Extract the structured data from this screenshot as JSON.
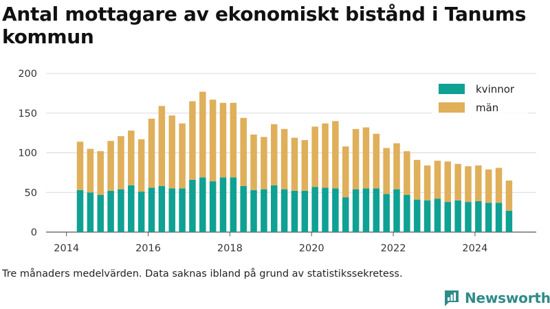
{
  "title": "Antal mottagare av ekonomiskt bistånd i Tanums kommun",
  "caption": "Tre månaders medelvärden. Data saknas ibland på grund av statistikssekretess.",
  "brand": "Newsworthy",
  "colors": {
    "kvinnor": "#0fa193",
    "man": "#dfaf5a",
    "brand": "#2e8b88"
  },
  "chart_data": {
    "type": "bar",
    "stacked": true,
    "title": "Antal mottagare av ekonomiskt bistånd i Tanums kommun",
    "xlabel": "",
    "ylabel": "",
    "ylim": [
      0,
      200
    ],
    "xlim": [
      2013.5,
      2025.5
    ],
    "yticks": [
      0,
      50,
      100,
      150,
      200
    ],
    "xticks": [
      "2014",
      "2016",
      "2018",
      "2020",
      "2022",
      "2024"
    ],
    "grid": true,
    "legend": "top-right",
    "x": [
      "2014-05",
      "2014-08",
      "2014-11",
      "2015-02",
      "2015-05",
      "2015-08",
      "2015-11",
      "2016-02",
      "2016-05",
      "2016-08",
      "2016-11",
      "2017-02",
      "2017-05",
      "2017-08",
      "2017-11",
      "2018-02",
      "2018-05",
      "2018-08",
      "2018-11",
      "2019-02",
      "2019-05",
      "2019-08",
      "2019-11",
      "2020-02",
      "2020-05",
      "2020-08",
      "2020-11",
      "2021-02",
      "2021-05",
      "2021-08",
      "2021-11",
      "2022-02",
      "2022-05",
      "2022-08",
      "2022-11",
      "2023-02",
      "2023-05",
      "2023-08",
      "2023-11",
      "2024-02",
      "2024-05",
      "2024-08",
      "2024-11"
    ],
    "series": [
      {
        "name": "kvinnor",
        "values": [
          53,
          50,
          47,
          52,
          54,
          59,
          51,
          56,
          58,
          55,
          55,
          66,
          69,
          64,
          69,
          69,
          58,
          53,
          54,
          59,
          54,
          52,
          52,
          57,
          56,
          55,
          44,
          54,
          55,
          55,
          48,
          54,
          47,
          41,
          40,
          42,
          38,
          40,
          38,
          39,
          37,
          37,
          27
        ]
      },
      {
        "name": "män",
        "values": [
          61,
          55,
          55,
          63,
          67,
          69,
          66,
          87,
          101,
          92,
          82,
          99,
          108,
          103,
          94,
          94,
          86,
          70,
          66,
          77,
          76,
          67,
          64,
          76,
          81,
          85,
          64,
          76,
          77,
          69,
          58,
          58,
          55,
          50,
          44,
          48,
          51,
          46,
          45,
          45,
          42,
          44,
          38
        ]
      }
    ]
  }
}
